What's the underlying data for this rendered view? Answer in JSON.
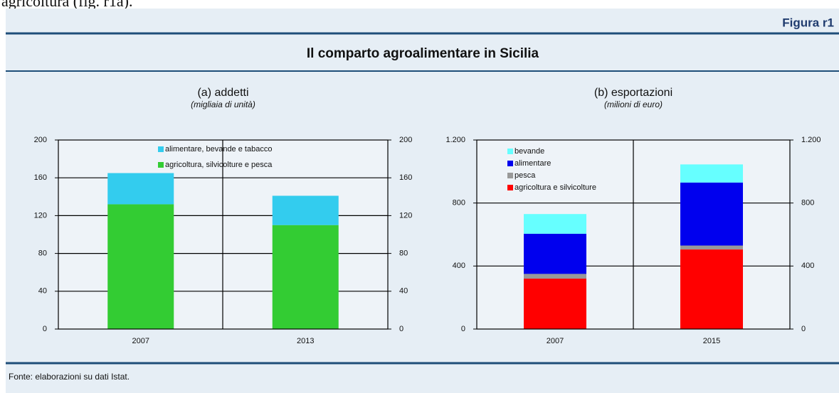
{
  "note_above": "agricoltura (fig. r1a).",
  "figure_label": "Figura r1",
  "title": "Il comparto agroalimentare in Sicilia",
  "source": "Fonte: elaborazioni su dati Istat.",
  "chart_data": [
    {
      "type": "bar",
      "stacked": true,
      "title": "(a) addetti",
      "subtitle": "(migliaia di unità)",
      "categories": [
        "2007",
        "2013"
      ],
      "series": [
        {
          "name": "agricoltura, silvicolture e pesca",
          "color": "#33cc33",
          "values": [
            132,
            110
          ]
        },
        {
          "name": "alimentare, bevande e tabacco",
          "color": "#33ccee",
          "values": [
            33,
            31
          ]
        }
      ],
      "ylim": [
        0,
        200
      ],
      "yticks": [
        0,
        40,
        80,
        120,
        160,
        200
      ],
      "y2lim": [
        0,
        200
      ],
      "y2ticks": [
        0,
        40,
        80,
        120,
        160,
        200
      ],
      "grid": true,
      "legend": "top"
    },
    {
      "type": "bar",
      "stacked": true,
      "title": "(b) esportazioni",
      "subtitle": "(milioni di euro)",
      "categories": [
        "2007",
        "2015"
      ],
      "series": [
        {
          "name": "agricoltura e silvicolture",
          "color": "#ff0000",
          "values": [
            320,
            505
          ]
        },
        {
          "name": "pesca",
          "color": "#999999",
          "values": [
            30,
            25
          ]
        },
        {
          "name": "alimentare",
          "color": "#0000ee",
          "values": [
            255,
            400
          ]
        },
        {
          "name": "bevande",
          "color": "#66ffff",
          "values": [
            125,
            115
          ]
        }
      ],
      "ylim": [
        0,
        1200
      ],
      "yticks": [
        0,
        400,
        800,
        {
          "value": 1200,
          "label": "1.200"
        }
      ],
      "y2lim": [
        0,
        1200
      ],
      "y2ticks": [
        0,
        400,
        800,
        {
          "value": 1200,
          "label": "1.200"
        }
      ],
      "grid": true,
      "legend": "top-left"
    }
  ]
}
